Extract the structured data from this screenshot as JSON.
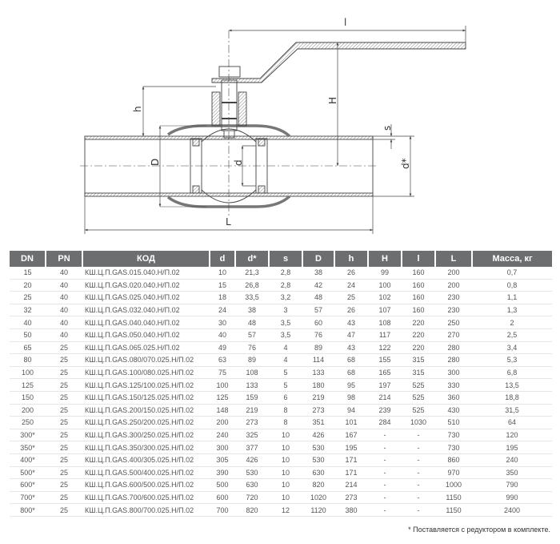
{
  "drawing": {
    "labels": {
      "l": "l",
      "H": "H",
      "h": "h",
      "D": "D",
      "d": "d",
      "d_star": "d*",
      "s": "s",
      "L": "L"
    }
  },
  "table": {
    "headers": [
      "DN",
      "PN",
      "КОД",
      "d",
      "d*",
      "s",
      "D",
      "h",
      "H",
      "l",
      "L",
      "Масса, кг"
    ],
    "rows": [
      [
        "15",
        "40",
        "КШ.Ц.П.GAS.015.040.Н/П.02",
        "10",
        "21,3",
        "2,8",
        "38",
        "26",
        "99",
        "160",
        "200",
        "0,7"
      ],
      [
        "20",
        "40",
        "КШ.Ц.П.GAS.020.040.Н/П.02",
        "15",
        "26,8",
        "2,8",
        "42",
        "24",
        "100",
        "160",
        "200",
        "0,8"
      ],
      [
        "25",
        "40",
        "КШ.Ц.П.GAS.025.040.Н/П.02",
        "18",
        "33,5",
        "3,2",
        "48",
        "25",
        "102",
        "160",
        "230",
        "1,1"
      ],
      [
        "32",
        "40",
        "КШ.Ц.П.GAS.032.040.Н/П.02",
        "24",
        "38",
        "3",
        "57",
        "26",
        "107",
        "160",
        "230",
        "1,3"
      ],
      [
        "40",
        "40",
        "КШ.Ц.П.GAS.040.040.Н/П.02",
        "30",
        "48",
        "3,5",
        "60",
        "43",
        "108",
        "220",
        "250",
        "2"
      ],
      [
        "50",
        "40",
        "КШ.Ц.П.GAS.050.040.Н/П.02",
        "40",
        "57",
        "3,5",
        "76",
        "47",
        "117",
        "220",
        "270",
        "2,5"
      ],
      [
        "65",
        "25",
        "КШ.Ц.П.GAS.065.025.Н/П.02",
        "49",
        "76",
        "4",
        "89",
        "43",
        "122",
        "220",
        "280",
        "3,4"
      ],
      [
        "80",
        "25",
        "КШ.Ц.П.GAS.080/070.025.Н/П.02",
        "63",
        "89",
        "4",
        "114",
        "68",
        "155",
        "315",
        "280",
        "5,3"
      ],
      [
        "100",
        "25",
        "КШ.Ц.П.GAS.100/080.025.Н/П.02",
        "75",
        "108",
        "5",
        "133",
        "68",
        "165",
        "315",
        "300",
        "6,8"
      ],
      [
        "125",
        "25",
        "КШ.Ц.П.GAS.125/100.025.Н/П.02",
        "100",
        "133",
        "5",
        "180",
        "95",
        "197",
        "525",
        "330",
        "13,5"
      ],
      [
        "150",
        "25",
        "КШ.Ц.П.GAS.150/125.025.Н/П.02",
        "125",
        "159",
        "6",
        "219",
        "98",
        "214",
        "525",
        "360",
        "18,8"
      ],
      [
        "200",
        "25",
        "КШ.Ц.П.GAS.200/150.025.Н/П.02",
        "148",
        "219",
        "8",
        "273",
        "94",
        "239",
        "525",
        "430",
        "31,5"
      ],
      [
        "250",
        "25",
        "КШ.Ц.П.GAS.250/200.025.Н/П.02",
        "200",
        "273",
        "8",
        "351",
        "101",
        "284",
        "1030",
        "510",
        "64"
      ],
      [
        "300*",
        "25",
        "КШ.Ц.П.GAS.300/250.025.Н/П.02",
        "240",
        "325",
        "10",
        "426",
        "167",
        "-",
        "-",
        "730",
        "120"
      ],
      [
        "350*",
        "25",
        "КШ.Ц.П.GAS.350/300.025.Н/П.02",
        "300",
        "377",
        "10",
        "530",
        "195",
        "-",
        "-",
        "730",
        "195"
      ],
      [
        "400*",
        "25",
        "КШ.Ц.П.GAS.400/305.025.Н/П.02",
        "305",
        "426",
        "10",
        "530",
        "171",
        "-",
        "-",
        "860",
        "240"
      ],
      [
        "500*",
        "25",
        "КШ.Ц.П.GAS.500/400.025.Н/П.02",
        "390",
        "530",
        "10",
        "630",
        "171",
        "-",
        "-",
        "970",
        "350"
      ],
      [
        "600*",
        "25",
        "КШ.Ц.П.GAS.600/500.025.Н/П.02",
        "500",
        "630",
        "10",
        "820",
        "214",
        "-",
        "-",
        "1000",
        "790"
      ],
      [
        "700*",
        "25",
        "КШ.Ц.П.GAS.700/600.025.Н/П.02",
        "600",
        "720",
        "10",
        "1020",
        "273",
        "-",
        "-",
        "1150",
        "990"
      ],
      [
        "800*",
        "25",
        "КШ.Ц.П.GAS.800/700.025.Н/П.02",
        "700",
        "820",
        "12",
        "1120",
        "380",
        "-",
        "-",
        "1150",
        "2400"
      ]
    ]
  },
  "footnote": "* Поставляется с редуктором в комплекте.",
  "colors": {
    "header_bg": "#6d6e70",
    "header_text": "#ffffff",
    "line": "#444444"
  }
}
